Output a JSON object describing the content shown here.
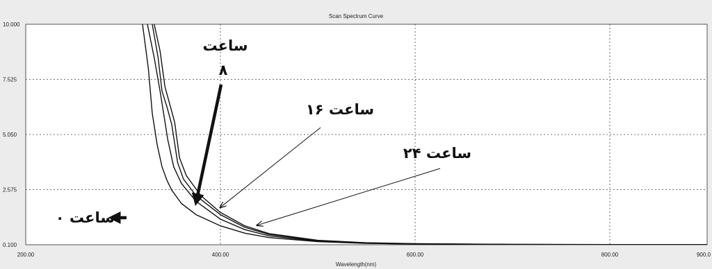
{
  "chart_data": {
    "type": "line",
    "title": "Scan Spectrum Curve",
    "xlabel": "Wavelength(nm)",
    "ylabel": "",
    "xlim": [
      200,
      900
    ],
    "ylim": [
      0.1,
      10
    ],
    "x_ticks": [
      "200.00",
      "400.00",
      "600.00",
      "800.00",
      "900.0"
    ],
    "x_tick_values": [
      200,
      400,
      600,
      800,
      900
    ],
    "y_ticks": [
      "10.000",
      "7.525",
      "5.050",
      "2.575",
      "0.100"
    ],
    "y_tick_values": [
      10,
      7.525,
      5.05,
      2.575,
      0.1
    ],
    "grid": true,
    "series": [
      {
        "x": [
          320,
          326,
          330,
          335,
          340,
          345,
          350,
          360,
          375,
          400,
          425,
          450,
          500,
          550,
          600,
          700,
          800,
          900
        ],
        "values": [
          10,
          8.0,
          6.0,
          4.6,
          3.6,
          3.0,
          2.55,
          1.95,
          1.45,
          0.95,
          0.62,
          0.42,
          0.24,
          0.16,
          0.13,
          0.11,
          0.105,
          0.1
        ]
      },
      {
        "x": [
          325,
          332,
          338,
          342,
          346,
          352,
          360,
          375,
          400,
          425,
          450,
          500,
          550,
          600,
          700,
          800,
          900
        ],
        "values": [
          10,
          8.5,
          7.0,
          5.9,
          4.8,
          3.6,
          2.85,
          2.05,
          1.25,
          0.78,
          0.5,
          0.26,
          0.17,
          0.13,
          0.11,
          0.105,
          0.1
        ]
      },
      {
        "x": [
          330,
          336,
          340,
          345,
          350,
          356,
          362,
          375,
          400,
          425,
          450,
          500,
          550,
          600,
          700,
          800,
          900
        ],
        "values": [
          10,
          8.5,
          7.0,
          6.3,
          5.5,
          3.8,
          3.05,
          2.3,
          1.45,
          0.88,
          0.56,
          0.28,
          0.18,
          0.14,
          0.115,
          0.105,
          0.1
        ]
      },
      {
        "x": [
          332,
          338,
          343,
          348,
          353,
          358,
          365,
          380,
          400,
          425,
          450,
          500,
          550,
          600,
          700,
          800,
          900
        ],
        "values": [
          10,
          8.8,
          7.2,
          6.4,
          5.6,
          4.0,
          3.2,
          2.3,
          1.55,
          0.95,
          0.6,
          0.3,
          0.19,
          0.15,
          0.12,
          0.11,
          0.1
        ]
      }
    ],
    "annotations": [
      {
        "text": "ساعت ۰",
        "target": [
          374,
          1.6
        ]
      },
      {
        "text": "ساعت",
        "text2": "۸",
        "target": [
          374,
          1.65
        ]
      },
      {
        "text": "ساعت ۱۶",
        "target": [
          400,
          1.55
        ]
      },
      {
        "text": "ساعت ۲۴",
        "target": [
          437,
          1.0
        ]
      }
    ]
  }
}
